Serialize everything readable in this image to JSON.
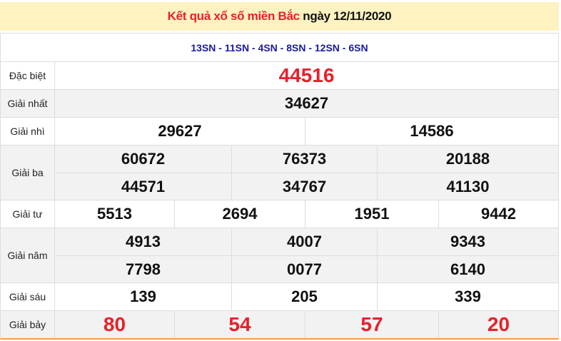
{
  "header": {
    "title_red": "Kết quả xổ số miền Bắc",
    "title_date": "ngày 12/11/2020"
  },
  "codes": "13SN - 11SN - 4SN - 8SN - 12SN - 6SN",
  "colors": {
    "accent_red": "#e8202a",
    "header_bg": "#fdf2c0",
    "code_blue": "#1a1aa0"
  },
  "prizes": {
    "special": {
      "label": "Đặc biệt",
      "values": [
        "44516"
      ]
    },
    "first": {
      "label": "Giải nhất",
      "values": [
        "34627"
      ]
    },
    "second": {
      "label": "Giải nhì",
      "values": [
        "29627",
        "14586"
      ]
    },
    "third": {
      "label": "Giải ba",
      "values": [
        "60672",
        "76373",
        "20188",
        "44571",
        "34767",
        "41130"
      ]
    },
    "fourth": {
      "label": "Giải tư",
      "values": [
        "5513",
        "2694",
        "1951",
        "9442"
      ]
    },
    "fifth": {
      "label": "Giải năm",
      "values": [
        "4913",
        "4007",
        "9343",
        "7798",
        "0077",
        "6140"
      ]
    },
    "sixth": {
      "label": "Giải sáu",
      "values": [
        "139",
        "205",
        "339"
      ]
    },
    "seventh": {
      "label": "Giải bảy",
      "values": [
        "80",
        "54",
        "57",
        "20"
      ]
    }
  }
}
